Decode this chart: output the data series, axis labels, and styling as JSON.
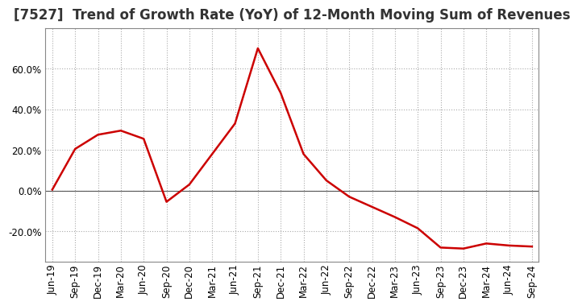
{
  "title": "[7527]  Trend of Growth Rate (YoY) of 12-Month Moving Sum of Revenues",
  "x_labels": [
    "Jun-19",
    "Sep-19",
    "Dec-19",
    "Mar-20",
    "Jun-20",
    "Sep-20",
    "Dec-20",
    "Mar-21",
    "Jun-21",
    "Sep-21",
    "Dec-21",
    "Mar-22",
    "Jun-22",
    "Sep-22",
    "Dec-22",
    "Mar-23",
    "Jun-23",
    "Sep-23",
    "Dec-23",
    "Mar-24",
    "Jun-24",
    "Sep-24"
  ],
  "x_values": [
    0,
    1,
    2,
    3,
    4,
    5,
    6,
    7,
    8,
    9,
    10,
    11,
    12,
    13,
    14,
    15,
    16,
    17,
    18,
    19,
    20,
    21
  ],
  "y_values": [
    0.5,
    20.5,
    27.5,
    29.5,
    25.5,
    -5.5,
    3.0,
    18.0,
    33.0,
    70.0,
    48.0,
    18.0,
    5.0,
    -3.0,
    -8.0,
    -13.0,
    -18.5,
    -28.0,
    -28.5,
    -26.0,
    -27.0,
    -27.5
  ],
  "line_color": "#cc0000",
  "line_width": 1.8,
  "background_color": "#ffffff",
  "grid_color": "#aaaaaa",
  "ylim": [
    -35,
    80
  ],
  "yticks": [
    -20.0,
    0.0,
    20.0,
    40.0,
    60.0
  ],
  "title_fontsize": 12,
  "tick_fontsize": 8.5,
  "zero_line_color": "#555555",
  "spine_color": "#888888"
}
